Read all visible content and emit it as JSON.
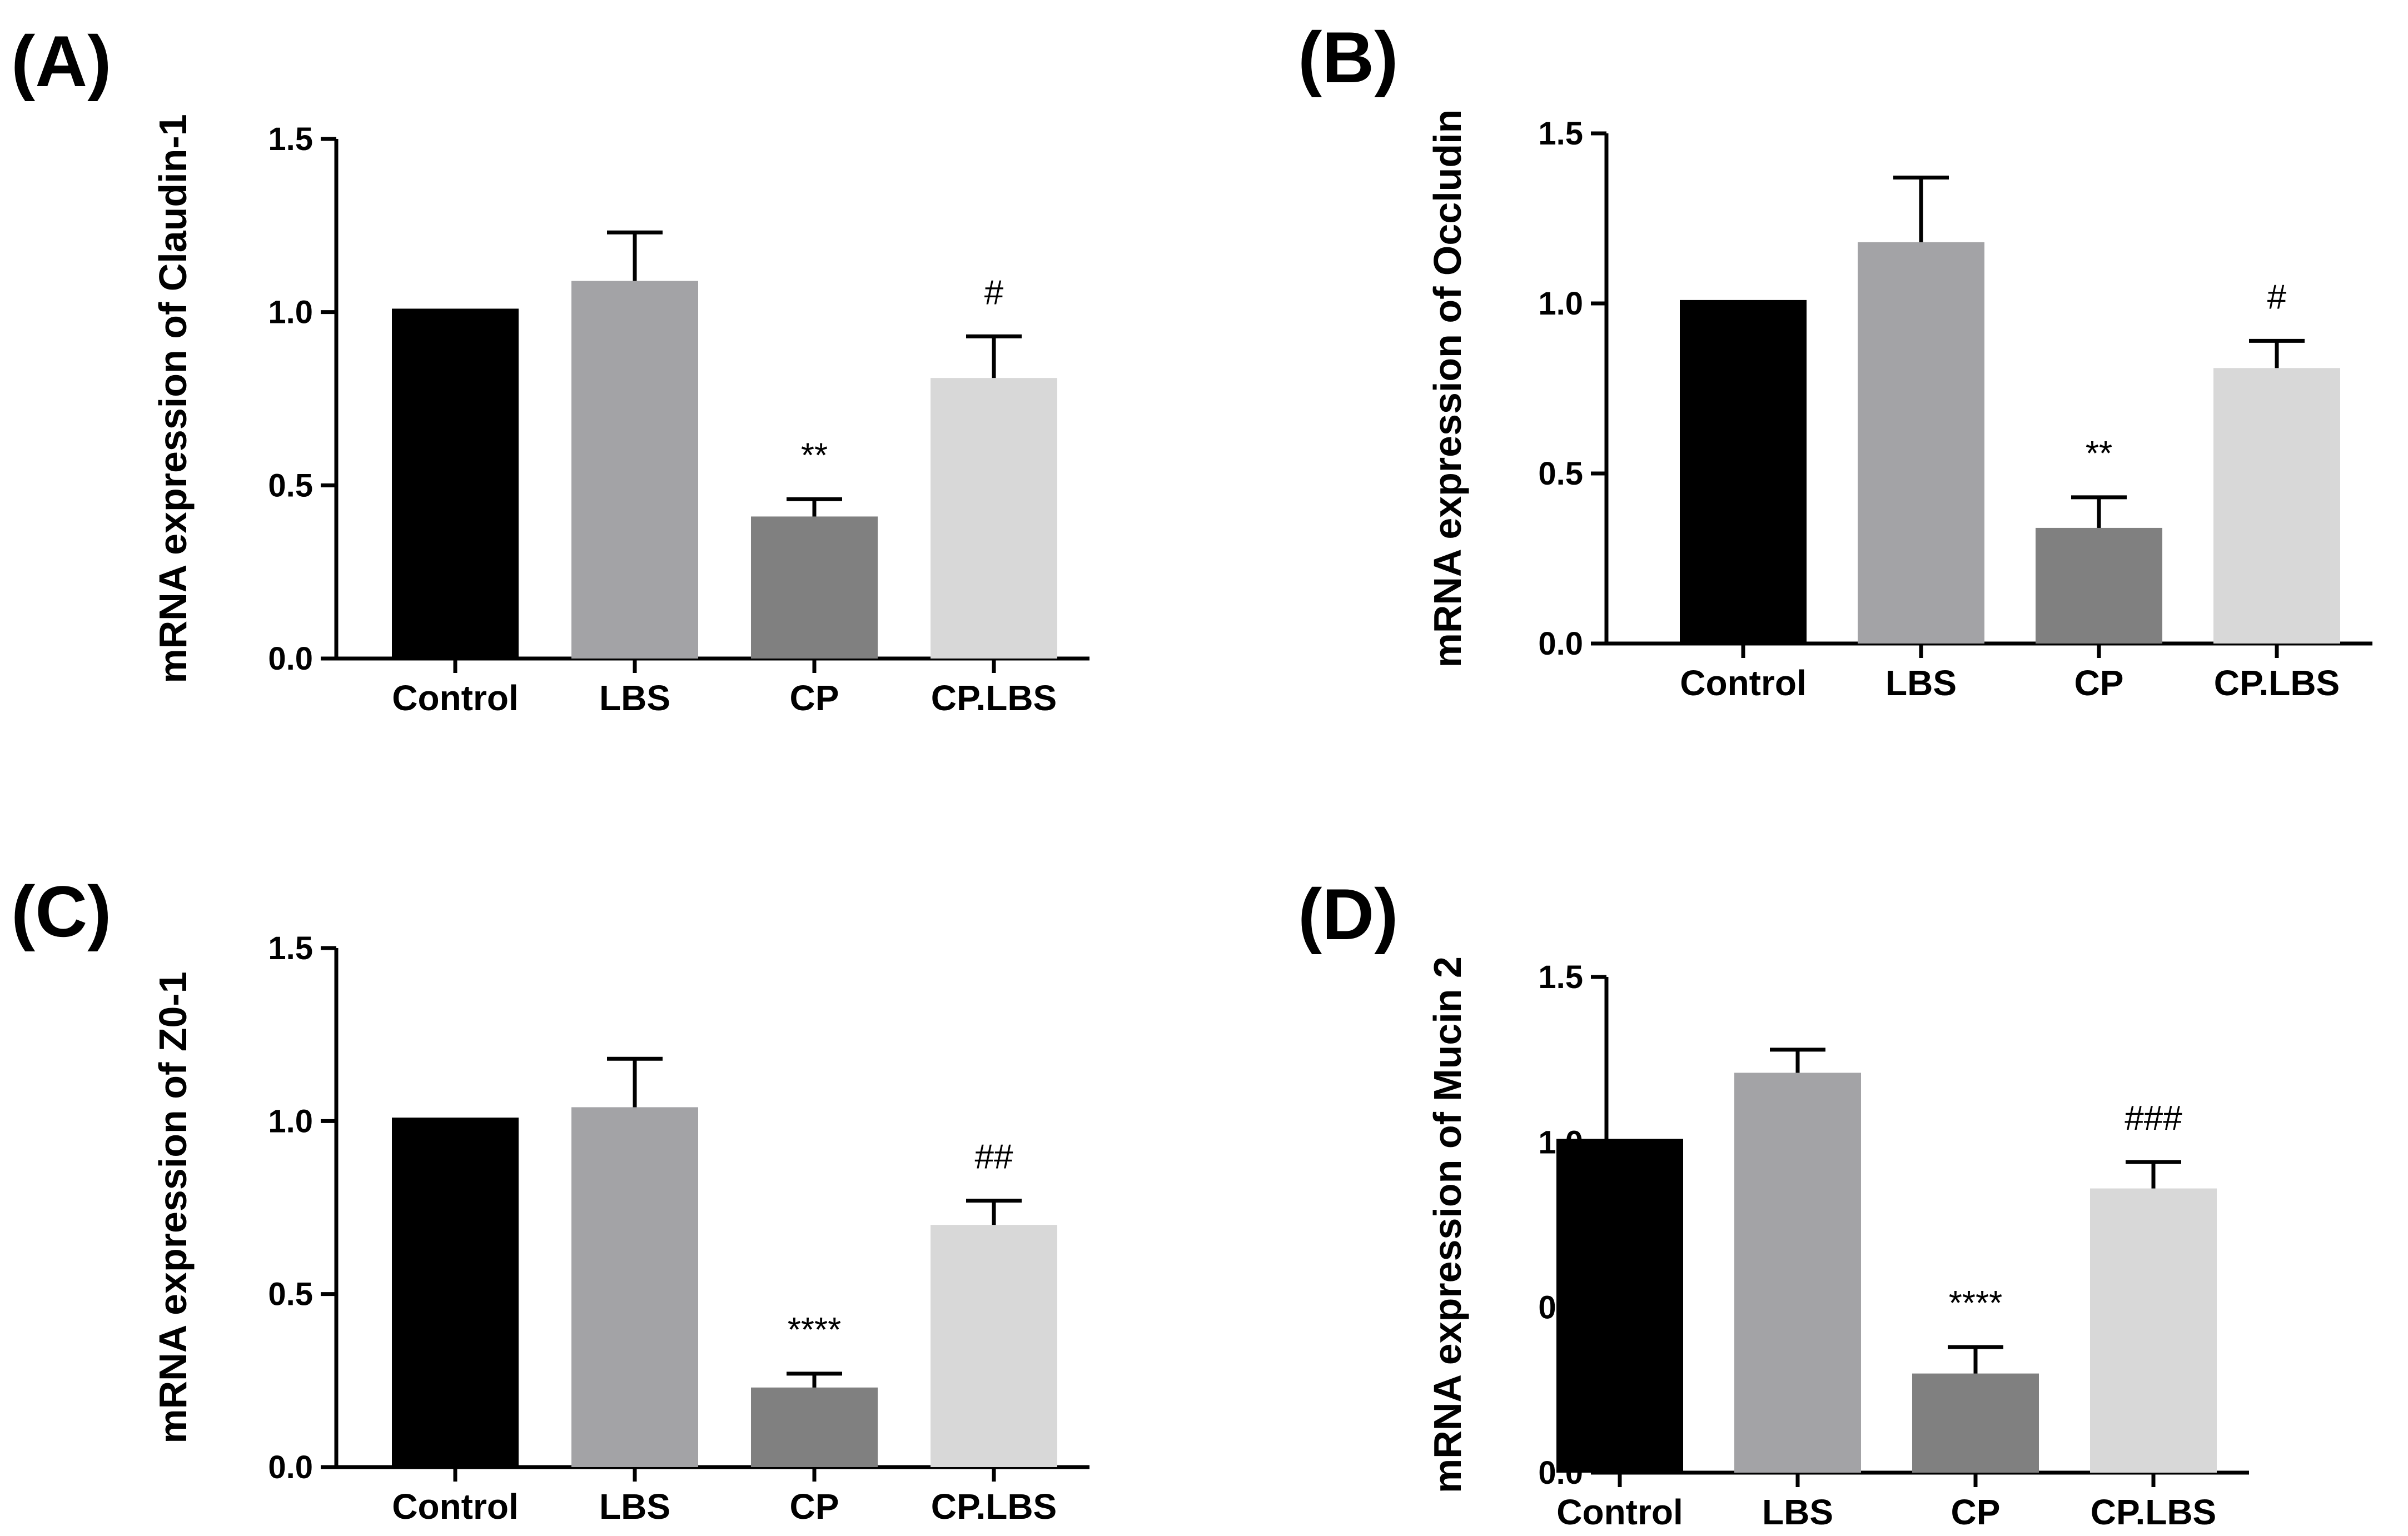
{
  "chart_data": [
    {
      "panel_label": "(A)",
      "type": "bar",
      "ylabel": "mRNA expression of Claudin-1",
      "ylim": [
        0,
        1.5
      ],
      "yticks": [
        "0.0",
        "0.5",
        "1.0",
        "1.5"
      ],
      "categories": [
        "Control",
        "LBS",
        "CP",
        "CP.LBS"
      ],
      "values": [
        1.01,
        1.09,
        0.41,
        0.81
      ],
      "errors": [
        0,
        0.14,
        0.05,
        0.12
      ],
      "annotations": [
        "",
        "",
        "**",
        "#"
      ],
      "colors": [
        "#000000",
        "#a3a3a6",
        "#808080",
        "#d8d8d8"
      ]
    },
    {
      "panel_label": "(B)",
      "type": "bar",
      "ylabel": "mRNA expression of Occludin",
      "ylim": [
        0,
        1.5
      ],
      "yticks": [
        "0.0",
        "0.5",
        "1.0",
        "1.5"
      ],
      "categories": [
        "Control",
        "LBS",
        "CP",
        "CP.LBS"
      ],
      "values": [
        1.01,
        1.18,
        0.34,
        0.81
      ],
      "errors": [
        0,
        0.19,
        0.09,
        0.08
      ],
      "annotations": [
        "",
        "",
        "**",
        "#"
      ],
      "colors": [
        "#000000",
        "#a3a3a6",
        "#808080",
        "#d8d8d8"
      ]
    },
    {
      "panel_label": "(C)",
      "type": "bar",
      "ylabel": "mRNA expression of Z0-1",
      "ylim": [
        0,
        1.5
      ],
      "yticks": [
        "0.0",
        "0.5",
        "1.0",
        "1.5"
      ],
      "categories": [
        "Control",
        "LBS",
        "CP",
        "CP.LBS"
      ],
      "values": [
        1.01,
        1.04,
        0.23,
        0.7
      ],
      "errors": [
        0,
        0.14,
        0.04,
        0.07
      ],
      "annotations": [
        "",
        "",
        "****",
        "##"
      ],
      "colors": [
        "#000000",
        "#a3a3a6",
        "#808080",
        "#d8d8d8"
      ]
    },
    {
      "panel_label": "(D)",
      "type": "bar",
      "ylabel": "mRNA expression of Mucin 2",
      "ylim": [
        0,
        1.5
      ],
      "yticks": [
        "0.0",
        "0.5",
        "1.0",
        "1.5"
      ],
      "categories": [
        "Control",
        "LBS",
        "CP",
        "CP.LBS"
      ],
      "values": [
        1.01,
        1.21,
        0.3,
        0.86
      ],
      "errors": [
        0,
        0.07,
        0.08,
        0.08
      ],
      "annotations": [
        "",
        "",
        "****",
        "###"
      ],
      "colors": [
        "#000000",
        "#a3a3a6",
        "#808080",
        "#d8d8d8"
      ]
    }
  ]
}
